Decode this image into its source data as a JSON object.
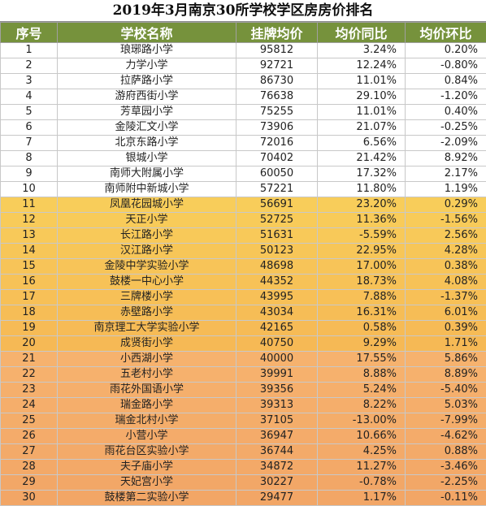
{
  "title": "2019年3月南京30所学校学区房房价排名",
  "headers": [
    "序号",
    "学校名称",
    "挂牌均价",
    "均价同比",
    "均价环比"
  ],
  "colors": {
    "header_bg": "#76923c",
    "tier1_bg": "#ffffff",
    "tier2_bg": "#f7c45e",
    "tier3_bg": "#f4a86c"
  },
  "rows": [
    {
      "rank": "1",
      "school": "琅琊路小学",
      "price": "95812",
      "yoy": "3.24%",
      "mom": "0.20%"
    },
    {
      "rank": "2",
      "school": "力学小学",
      "price": "92721",
      "yoy": "12.24%",
      "mom": "-0.80%"
    },
    {
      "rank": "3",
      "school": "拉萨路小学",
      "price": "86730",
      "yoy": "11.01%",
      "mom": "0.84%"
    },
    {
      "rank": "4",
      "school": "游府西街小学",
      "price": "76638",
      "yoy": "29.10%",
      "mom": "-1.20%"
    },
    {
      "rank": "5",
      "school": "芳草园小学",
      "price": "75255",
      "yoy": "11.01%",
      "mom": "0.40%"
    },
    {
      "rank": "6",
      "school": "金陵汇文小学",
      "price": "73906",
      "yoy": "21.07%",
      "mom": "-0.25%"
    },
    {
      "rank": "7",
      "school": "北京东路小学",
      "price": "72016",
      "yoy": "6.56%",
      "mom": "-2.09%"
    },
    {
      "rank": "8",
      "school": "银城小学",
      "price": "70402",
      "yoy": "21.42%",
      "mom": "8.92%"
    },
    {
      "rank": "9",
      "school": "南师大附属小学",
      "price": "60050",
      "yoy": "17.32%",
      "mom": "2.17%"
    },
    {
      "rank": "10",
      "school": "南师附中新城小学",
      "price": "57221",
      "yoy": "11.80%",
      "mom": "1.19%"
    },
    {
      "rank": "11",
      "school": "凤凰花园城小学",
      "price": "56691",
      "yoy": "23.20%",
      "mom": "0.29%"
    },
    {
      "rank": "12",
      "school": "天正小学",
      "price": "52725",
      "yoy": "11.36%",
      "mom": "-1.56%"
    },
    {
      "rank": "13",
      "school": "长江路小学",
      "price": "51631",
      "yoy": "-5.59%",
      "mom": "2.56%"
    },
    {
      "rank": "14",
      "school": "汉江路小学",
      "price": "50123",
      "yoy": "22.95%",
      "mom": "4.28%"
    },
    {
      "rank": "15",
      "school": "金陵中学实验小学",
      "price": "48698",
      "yoy": "17.00%",
      "mom": "0.38%"
    },
    {
      "rank": "16",
      "school": "鼓楼一中心小学",
      "price": "44352",
      "yoy": "18.73%",
      "mom": "4.08%"
    },
    {
      "rank": "17",
      "school": "三牌楼小学",
      "price": "43995",
      "yoy": "7.88%",
      "mom": "-1.37%"
    },
    {
      "rank": "18",
      "school": "赤壁路小学",
      "price": "43034",
      "yoy": "16.31%",
      "mom": "6.01%"
    },
    {
      "rank": "19",
      "school": "南京理工大学实验小学",
      "price": "42165",
      "yoy": "0.58%",
      "mom": "0.39%"
    },
    {
      "rank": "20",
      "school": "成贤街小学",
      "price": "40750",
      "yoy": "9.29%",
      "mom": "1.71%"
    },
    {
      "rank": "21",
      "school": "小西湖小学",
      "price": "40000",
      "yoy": "17.55%",
      "mom": "5.86%"
    },
    {
      "rank": "22",
      "school": "五老村小学",
      "price": "39991",
      "yoy": "8.88%",
      "mom": "8.89%"
    },
    {
      "rank": "23",
      "school": "雨花外国语小学",
      "price": "39356",
      "yoy": "5.24%",
      "mom": "-5.40%"
    },
    {
      "rank": "24",
      "school": "瑞金路小学",
      "price": "39313",
      "yoy": "8.22%",
      "mom": "5.03%"
    },
    {
      "rank": "25",
      "school": "瑞金北村小学",
      "price": "37105",
      "yoy": "-13.00%",
      "mom": "-7.99%"
    },
    {
      "rank": "26",
      "school": "小营小学",
      "price": "36947",
      "yoy": "10.66%",
      "mom": "-4.62%"
    },
    {
      "rank": "27",
      "school": "雨花台区实验小学",
      "price": "36744",
      "yoy": "4.25%",
      "mom": "0.88%"
    },
    {
      "rank": "28",
      "school": "夫子庙小学",
      "price": "34872",
      "yoy": "11.27%",
      "mom": "-3.46%"
    },
    {
      "rank": "29",
      "school": "天妃宫小学",
      "price": "30227",
      "yoy": "-0.78%",
      "mom": "-2.25%"
    },
    {
      "rank": "30",
      "school": "鼓楼第二实验小学",
      "price": "29477",
      "yoy": "1.17%",
      "mom": "-0.11%"
    }
  ]
}
